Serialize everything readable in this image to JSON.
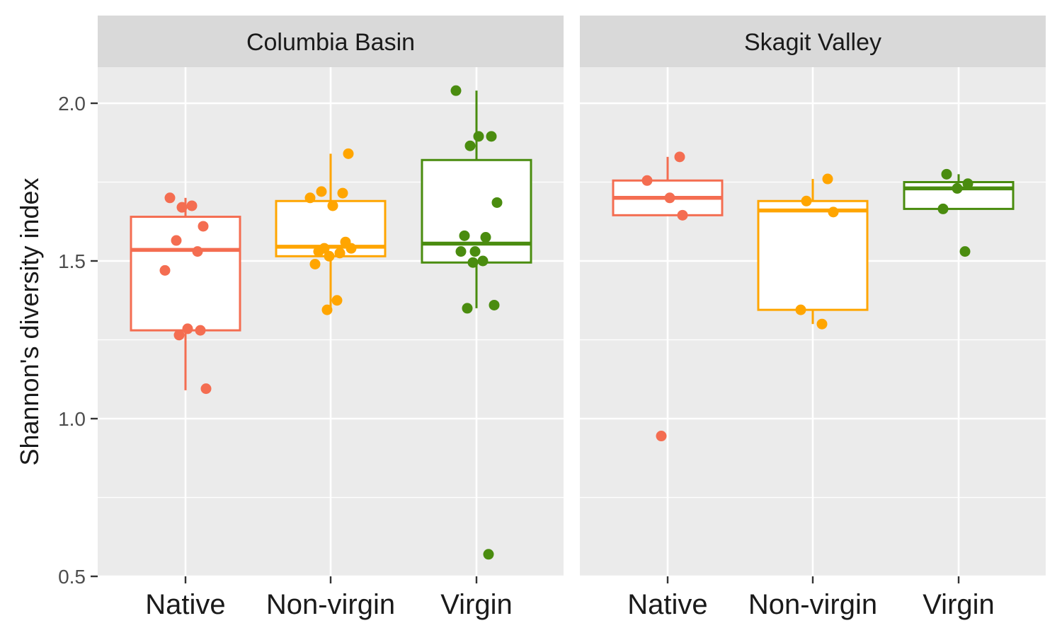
{
  "chart_data": {
    "type": "box",
    "ylabel": "Shannon's diversity index",
    "xlabel": "",
    "ylim": [
      0.5,
      2.15
    ],
    "yticks": [
      "0.5",
      "1.0",
      "1.5",
      "2.0"
    ],
    "ytick_values": [
      0.5,
      1.0,
      1.5,
      2.0
    ],
    "grid": true,
    "categories": [
      "Native",
      "Non-virgin",
      "Virgin"
    ],
    "colors": {
      "Native": "#F46D51",
      "Non-virgin": "#FFA500",
      "Virgin": "#4A8C0F"
    },
    "panels": [
      {
        "title": "Columbia Basin",
        "boxes": [
          {
            "category": "Native",
            "whisker_low": 1.09,
            "q1": 1.28,
            "median": 1.535,
            "q3": 1.64,
            "whisker_high": 1.7,
            "points": [
              1.7,
              1.675,
              1.67,
              1.61,
              1.565,
              1.53,
              1.47,
              1.285,
              1.28,
              1.265,
              1.095
            ]
          },
          {
            "category": "Non-virgin",
            "whisker_low": 1.35,
            "q1": 1.515,
            "median": 1.545,
            "q3": 1.69,
            "whisker_high": 1.84,
            "points": [
              1.84,
              1.72,
              1.715,
              1.7,
              1.675,
              1.56,
              1.54,
              1.54,
              1.53,
              1.525,
              1.515,
              1.49,
              1.375,
              1.345
            ]
          },
          {
            "category": "Virgin",
            "whisker_low": 1.35,
            "q1": 1.495,
            "median": 1.555,
            "q3": 1.82,
            "whisker_high": 2.04,
            "points": [
              2.04,
              1.895,
              1.895,
              1.865,
              1.685,
              1.58,
              1.575,
              1.53,
              1.53,
              1.5,
              1.495,
              1.36,
              1.35,
              0.57
            ]
          }
        ]
      },
      {
        "title": "Skagit Valley",
        "boxes": [
          {
            "category": "Native",
            "whisker_low": 1.645,
            "q1": 1.645,
            "median": 1.7,
            "q3": 1.755,
            "whisker_high": 1.83,
            "points": [
              1.83,
              1.755,
              1.7,
              1.645,
              0.945
            ]
          },
          {
            "category": "Non-virgin",
            "whisker_low": 1.3,
            "q1": 1.345,
            "median": 1.66,
            "q3": 1.69,
            "whisker_high": 1.76,
            "points": [
              1.76,
              1.69,
              1.655,
              1.345,
              1.3
            ]
          },
          {
            "category": "Virgin",
            "whisker_low": 1.665,
            "q1": 1.665,
            "median": 1.73,
            "q3": 1.75,
            "whisker_high": 1.775,
            "points": [
              1.775,
              1.745,
              1.73,
              1.665,
              1.53
            ]
          }
        ]
      }
    ]
  }
}
